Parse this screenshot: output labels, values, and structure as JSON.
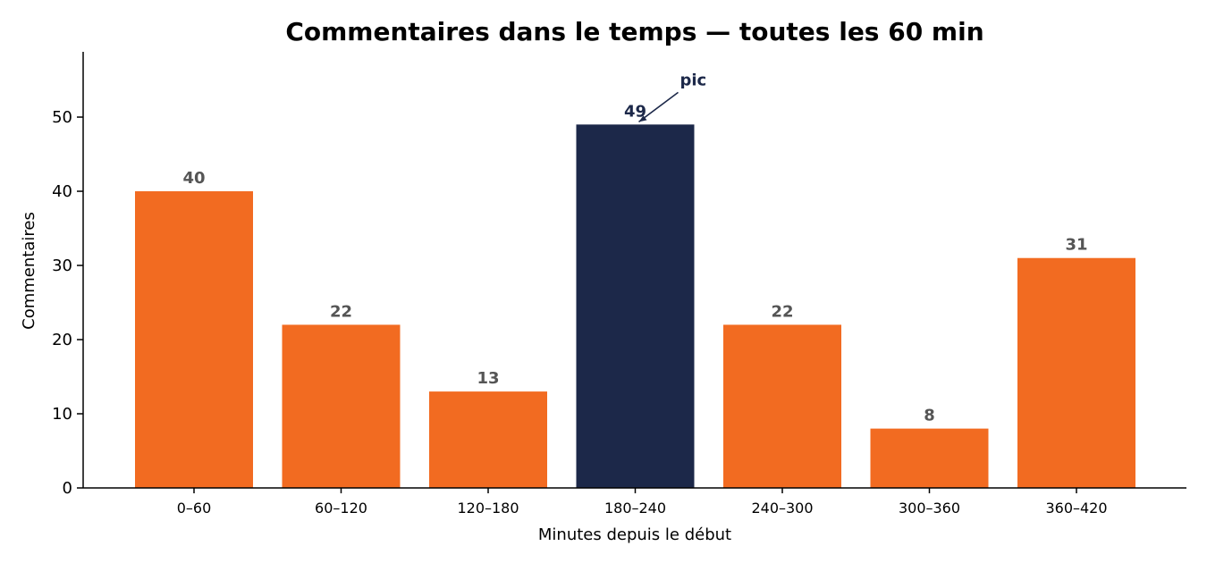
{
  "chart_data": {
    "type": "bar",
    "title": "Commentaires dans le temps — toutes les 60 min",
    "xlabel": "Minutes depuis le début",
    "ylabel": "Commentaires",
    "categories": [
      "0–60",
      "60–120",
      "120–180",
      "180–240",
      "240–300",
      "300–360",
      "360–420"
    ],
    "values": [
      40,
      22,
      13,
      49,
      22,
      8,
      31
    ],
    "ylim": [
      0,
      58.8
    ],
    "yticks": [
      0,
      10,
      20,
      30,
      40,
      50
    ],
    "grid": false,
    "highlight_index": 3,
    "annotation": {
      "text": "pic",
      "target_index": 3
    },
    "colors": {
      "bar": "#f26b21",
      "highlight": "#1c2849",
      "data_label": "#555555",
      "annotation": "#1c2849"
    }
  }
}
